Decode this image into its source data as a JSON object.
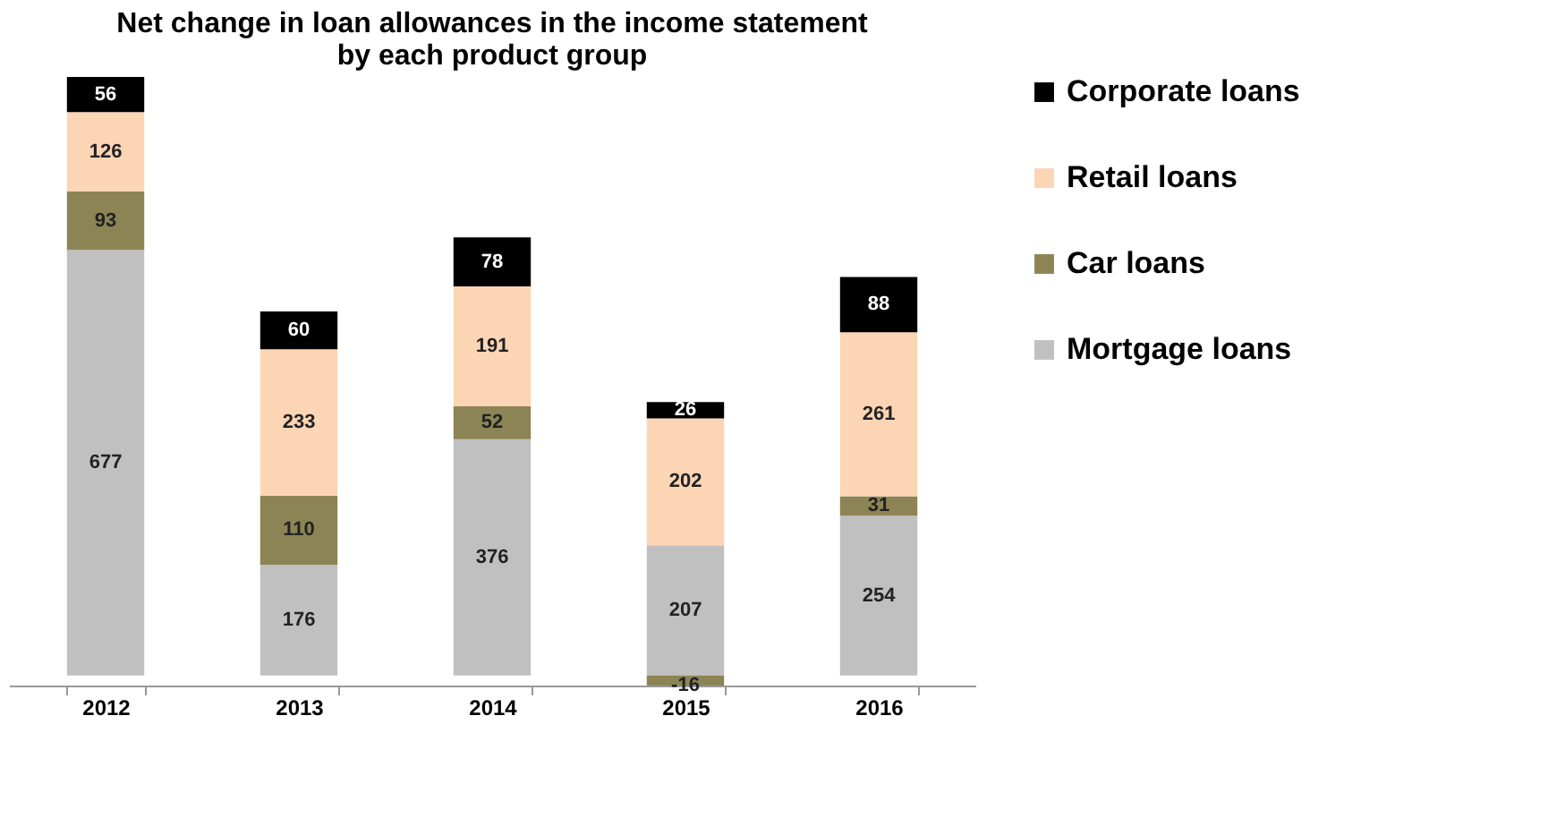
{
  "chart_data": {
    "type": "bar",
    "title": "Net change in loan allowances in the income statement\nby each product group",
    "categories": [
      "2012",
      "2013",
      "2014",
      "2015",
      "2016"
    ],
    "series": [
      {
        "name": "Mortgage loans",
        "color": "#c0c0c0",
        "values": [
          677,
          176,
          376,
          207,
          254
        ]
      },
      {
        "name": "Car loans",
        "color": "#8c8454",
        "values": [
          93,
          110,
          52,
          -16,
          31
        ]
      },
      {
        "name": "Retail loans",
        "color": "#fcd5b5",
        "values": [
          126,
          233,
          191,
          202,
          261
        ]
      },
      {
        "name": "Corporate loans",
        "color": "#000000",
        "values": [
          56,
          60,
          78,
          26,
          88
        ]
      }
    ],
    "stacked": true,
    "data_labels": true,
    "legend": "right",
    "grid": false
  }
}
